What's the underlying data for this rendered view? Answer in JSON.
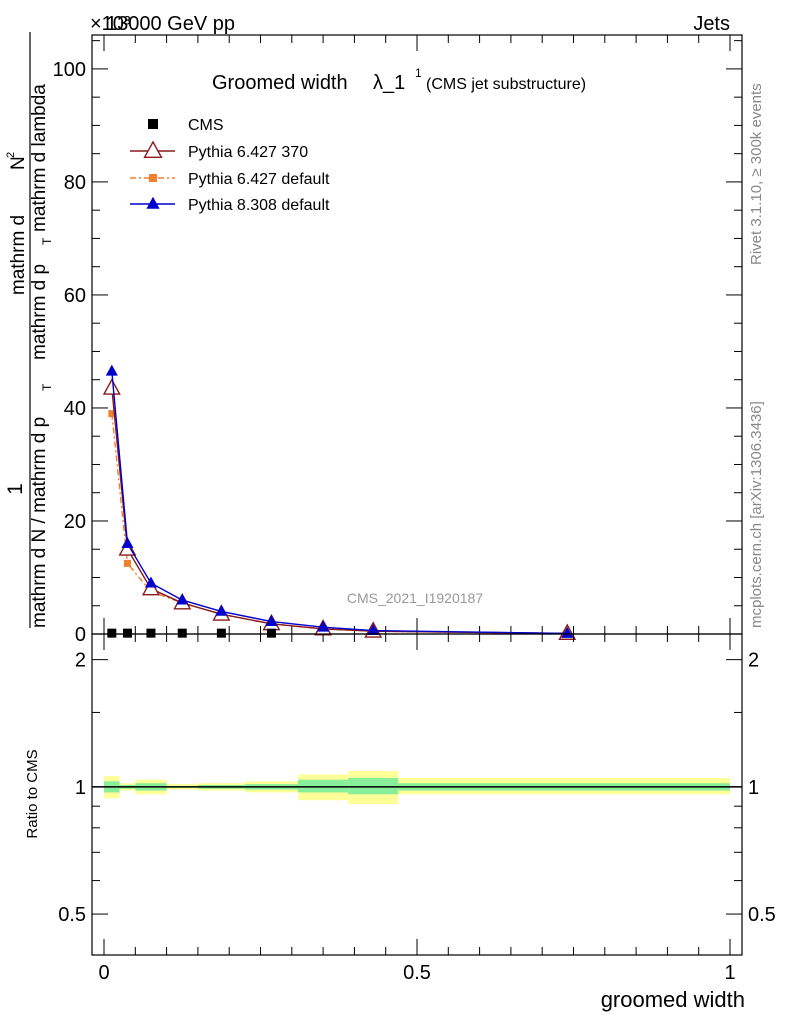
{
  "header": {
    "energy": "13000 GeV pp",
    "exponent": "×10³",
    "process": "Jets"
  },
  "side_labels": {
    "rivet": "Rivet 3.1.10, ≥ 300k events",
    "mcplots": "mcplots.cern.ch [arXiv:1306.3436]"
  },
  "watermark": "CMS_2021_I1920187",
  "colors": {
    "cms": "#000000",
    "py6_370": "#8b1a1a",
    "py6_default": "#f08030",
    "py8_default": "#0000cc",
    "band_yellow": "#ffff99",
    "band_green": "#88ee99"
  },
  "chart_data": [
    {
      "type": "line",
      "title_main": "Groomed width",
      "title_lambda": "λ_1",
      "title_sup": "1",
      "title_sub": "(CMS jet substructure)",
      "xlabel": "",
      "ylabel": "1/(mathrm d N / mathrm d p_T) mathrm d²N/(mathrm d p_T mathrm d lambda)",
      "ylabel_parts": {
        "one": "1",
        "numer_bot": "mathrm d",
        "numer_top": "N",
        "numer_exp": "2",
        "denom": "mathrm d N / mathrm d p",
        "denom_sub": "T",
        "rest": "mathrm d p",
        "rest_sub": "T",
        "rest2": "mathrm d lambda"
      },
      "xlim": [
        0,
        1
      ],
      "ylim": [
        0,
        106
      ],
      "yticks": [
        0,
        20,
        40,
        60,
        80,
        100
      ],
      "ytick_labels": [
        "0",
        "20",
        "40",
        "60",
        "80",
        "100"
      ],
      "legend_position": "top-left",
      "series": [
        {
          "name": "CMS",
          "key": "cms",
          "marker": "square",
          "x": [
            0.0125,
            0.0375,
            0.075,
            0.125,
            0.1875,
            0.2675
          ],
          "y": [
            0.15,
            0.15,
            0.15,
            0.15,
            0.15,
            0.15
          ]
        },
        {
          "name": "Pythia 6.427 370",
          "key": "py6_370",
          "marker": "open-triangle",
          "x": [
            0.0125,
            0.0375,
            0.075,
            0.125,
            0.1875,
            0.2675,
            0.35,
            0.43,
            0.74
          ],
          "y": [
            43.5,
            15.0,
            8.0,
            5.5,
            3.5,
            1.8,
            0.9,
            0.5,
            0.1
          ]
        },
        {
          "name": "Pythia 6.427 default",
          "key": "py6_default",
          "marker": "square",
          "x": [
            0.0125,
            0.0375,
            0.075,
            0.125,
            0.1875,
            0.2675,
            0.35,
            0.43,
            0.74
          ],
          "y": [
            39.0,
            12.5,
            7.5,
            5.5,
            3.5,
            1.8,
            0.9,
            0.5,
            0.1
          ]
        },
        {
          "name": "Pythia 8.308 default",
          "key": "py8_default",
          "marker": "filled-triangle",
          "x": [
            0.0125,
            0.0375,
            0.075,
            0.125,
            0.1875,
            0.2675,
            0.35,
            0.43,
            0.74
          ],
          "y": [
            46.5,
            16.0,
            9.0,
            6.0,
            4.0,
            2.2,
            1.2,
            0.6,
            0.1
          ]
        }
      ]
    },
    {
      "type": "area",
      "xlabel": "groomed width",
      "ylabel": "Ratio to CMS",
      "xlim": [
        0,
        1
      ],
      "ylim": [
        0.4,
        2.3
      ],
      "xticks": [
        0,
        0.5,
        1
      ],
      "xtick_labels": [
        "0",
        "0.5",
        "1"
      ],
      "yticks": [
        0.5,
        1,
        2
      ],
      "ytick_labels": [
        "0.5",
        "1",
        "2"
      ],
      "reference_line": 1,
      "bands": [
        {
          "x0": 0.0,
          "x1": 0.025,
          "yellow": [
            0.94,
            1.06
          ],
          "green": [
            0.97,
            1.03
          ]
        },
        {
          "x0": 0.025,
          "x1": 0.05,
          "yellow": [
            0.98,
            1.02
          ],
          "green": [
            0.99,
            1.01
          ]
        },
        {
          "x0": 0.05,
          "x1": 0.1,
          "yellow": [
            0.96,
            1.04
          ],
          "green": [
            0.98,
            1.02
          ]
        },
        {
          "x0": 0.1,
          "x1": 0.15,
          "yellow": [
            0.985,
            1.015
          ],
          "green": [
            0.995,
            1.005
          ]
        },
        {
          "x0": 0.15,
          "x1": 0.225,
          "yellow": [
            0.98,
            1.02
          ],
          "green": [
            0.99,
            1.01
          ]
        },
        {
          "x0": 0.225,
          "x1": 0.31,
          "yellow": [
            0.97,
            1.03
          ],
          "green": [
            0.985,
            1.015
          ]
        },
        {
          "x0": 0.31,
          "x1": 0.39,
          "yellow": [
            0.93,
            1.07
          ],
          "green": [
            0.97,
            1.04
          ]
        },
        {
          "x0": 0.39,
          "x1": 0.47,
          "yellow": [
            0.91,
            1.09
          ],
          "green": [
            0.96,
            1.05
          ]
        },
        {
          "x0": 0.47,
          "x1": 1.0,
          "yellow": [
            0.96,
            1.05
          ],
          "green": [
            0.98,
            1.02
          ]
        }
      ]
    }
  ]
}
